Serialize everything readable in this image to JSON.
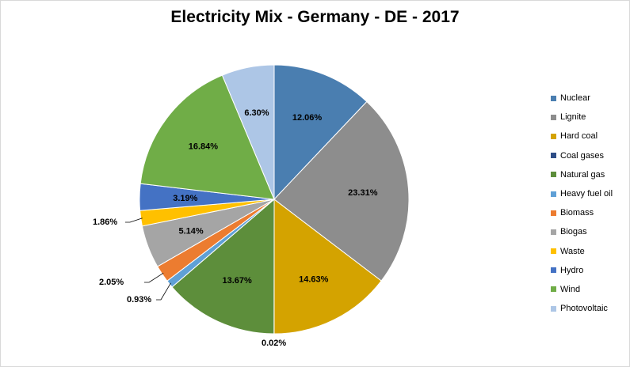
{
  "chart_data": {
    "type": "pie",
    "title": "Electricity Mix - Germany - DE - 2017",
    "slices": [
      {
        "label": "Nuclear",
        "value": 12.06,
        "display": "12.06%",
        "color": "#4a7eb0"
      },
      {
        "label": "Lignite",
        "value": 23.31,
        "display": "23.31%",
        "color": "#8d8d8d"
      },
      {
        "label": "Hard coal",
        "value": 14.63,
        "display": "14.63%",
        "color": "#d4a300"
      },
      {
        "label": "Coal gases",
        "value": 0.02,
        "display": "0.02%",
        "color": "#2e4d86"
      },
      {
        "label": "Natural gas",
        "value": 13.67,
        "display": "13.67%",
        "color": "#5d8e3b"
      },
      {
        "label": "Heavy fuel oil",
        "value": 0.93,
        "display": "0.93%",
        "color": "#5fa0d6"
      },
      {
        "label": "Biomass",
        "value": 2.05,
        "display": "2.05%",
        "color": "#ec7c30"
      },
      {
        "label": "Biogas",
        "value": 5.14,
        "display": "5.14%",
        "color": "#a5a5a5"
      },
      {
        "label": "Waste",
        "value": 1.86,
        "display": "1.86%",
        "color": "#ffc000"
      },
      {
        "label": "Hydro",
        "value": 3.19,
        "display": "3.19%",
        "color": "#4472c4"
      },
      {
        "label": "Wind",
        "value": 16.84,
        "display": "16.84%",
        "color": "#70ad47"
      },
      {
        "label": "Photovoltaic",
        "value": 6.3,
        "display": "6.30%",
        "color": "#adc6e6"
      }
    ],
    "legend_position": "right"
  }
}
